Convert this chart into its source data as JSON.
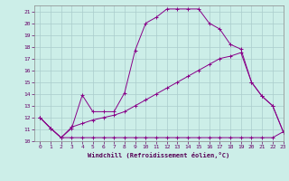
{
  "background_color": "#cceee8",
  "grid_color": "#aacccc",
  "line_color": "#880088",
  "xlim": [
    -0.5,
    23
  ],
  "ylim": [
    10,
    21.5
  ],
  "yticks": [
    10,
    11,
    12,
    13,
    14,
    15,
    16,
    17,
    18,
    19,
    20,
    21
  ],
  "xticks": [
    0,
    1,
    2,
    3,
    4,
    5,
    6,
    7,
    8,
    9,
    10,
    11,
    12,
    13,
    14,
    15,
    16,
    17,
    18,
    19,
    20,
    21,
    22,
    23
  ],
  "xlabel": "Windchill (Refroidissement éolien,°C)",
  "line1_x": [
    0,
    1,
    2,
    3,
    4,
    5,
    6,
    7,
    8,
    9,
    10,
    11,
    12,
    13,
    14,
    15,
    16,
    17,
    18,
    19,
    20,
    21,
    22,
    23
  ],
  "line1_y": [
    12,
    11.1,
    10.3,
    10.3,
    10.3,
    10.3,
    10.3,
    10.3,
    10.3,
    10.3,
    10.3,
    10.3,
    10.3,
    10.3,
    10.3,
    10.3,
    10.3,
    10.3,
    10.3,
    10.3,
    10.3,
    10.3,
    10.3,
    10.8
  ],
  "line2_x": [
    0,
    1,
    2,
    3,
    4,
    5,
    6,
    7,
    8,
    9,
    10,
    11,
    12,
    13,
    14,
    15,
    16,
    17,
    18,
    19,
    20,
    21,
    22,
    23
  ],
  "line2_y": [
    12,
    11.1,
    10.3,
    11.1,
    13.9,
    12.5,
    12.5,
    12.5,
    14.1,
    17.7,
    20.0,
    20.5,
    21.2,
    21.2,
    21.2,
    21.2,
    20.0,
    19.5,
    18.2,
    17.8,
    15.0,
    13.8,
    13.0,
    10.8
  ],
  "line3_x": [
    0,
    1,
    2,
    3,
    4,
    5,
    6,
    7,
    8,
    9,
    10,
    11,
    12,
    13,
    14,
    15,
    16,
    17,
    18,
    19,
    20,
    21,
    22,
    23
  ],
  "line3_y": [
    12,
    11.1,
    10.3,
    11.2,
    11.5,
    11.8,
    12.0,
    12.2,
    12.5,
    13.0,
    13.5,
    14.0,
    14.5,
    15.0,
    15.5,
    16.0,
    16.5,
    17.0,
    17.2,
    17.5,
    15.0,
    13.8,
    13.0,
    10.8
  ]
}
